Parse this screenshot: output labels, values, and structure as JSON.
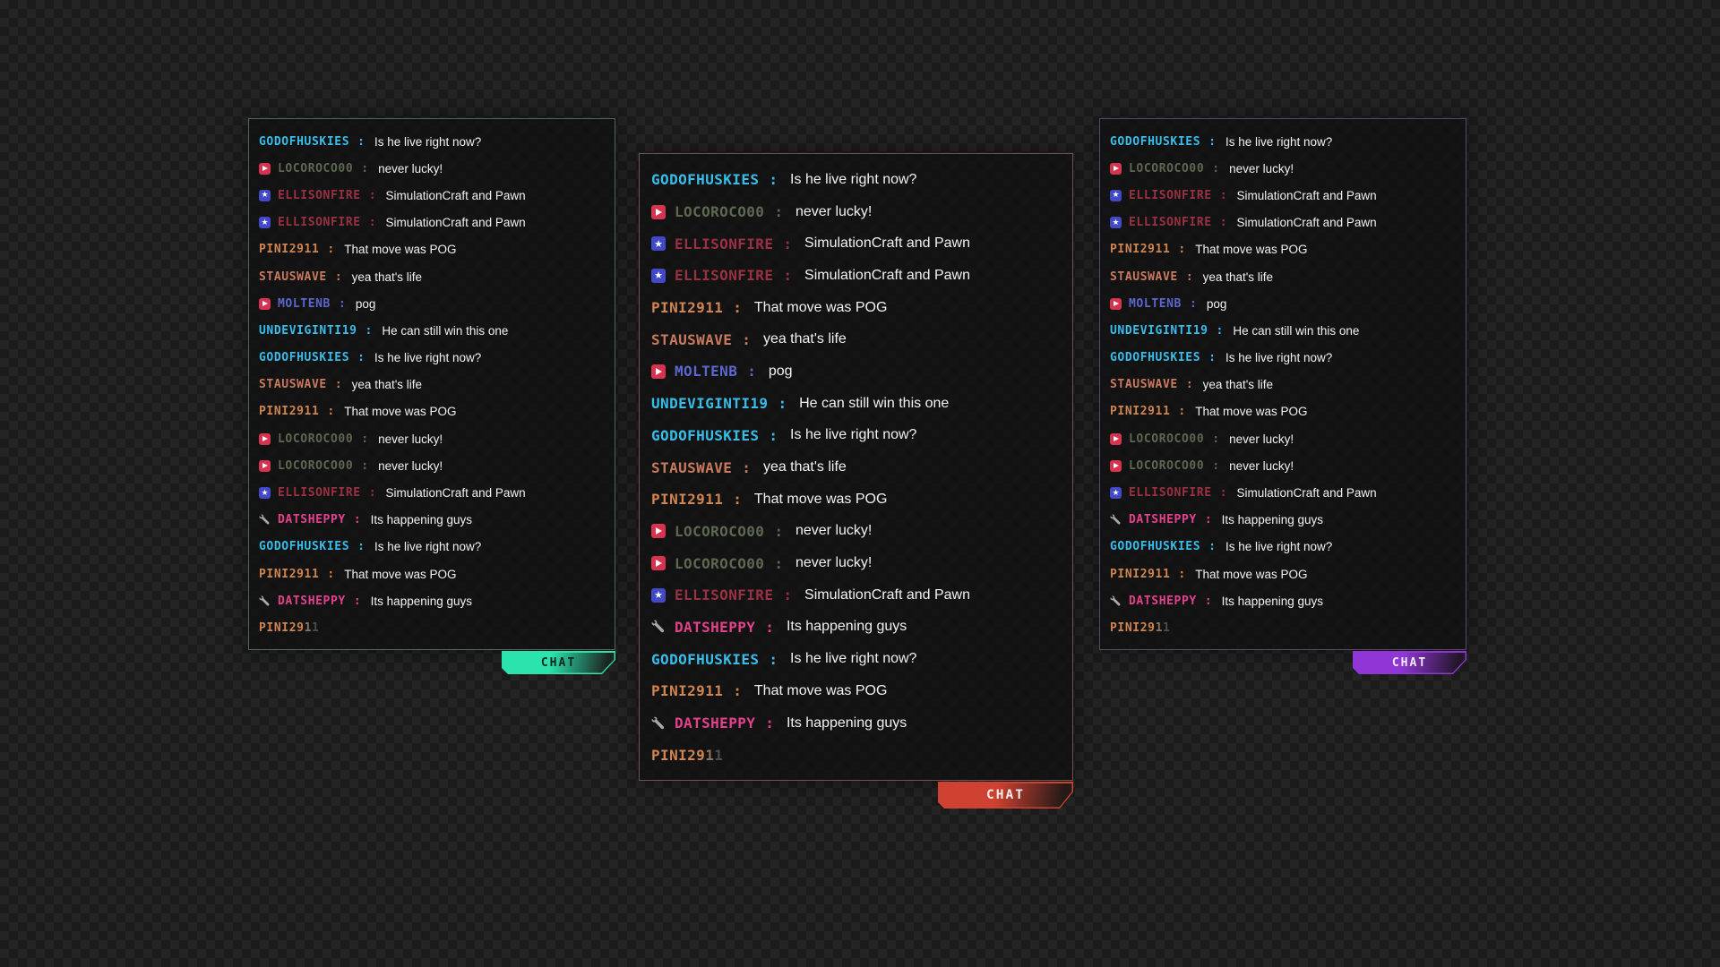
{
  "background": {
    "base_color": "#242424",
    "check_color": "#1b1b1b"
  },
  "message_text_color": "#f2f2f2",
  "users": {
    "GODOFHUSKIES": {
      "color": "#38bdea",
      "badge": null
    },
    "LOCOROCO00": {
      "color": "#5d6751",
      "badge": "video"
    },
    "ELLISONFIRE": {
      "color": "#9a3142",
      "badge": "star"
    },
    "PINI2911": {
      "color": "#d08450",
      "badge": null
    },
    "STAUSWAVE": {
      "color": "#c97a5e",
      "badge": null
    },
    "MOLTENB": {
      "color": "#5b67cf",
      "badge": "video"
    },
    "UNDEVIGINTI19": {
      "color": "#38bdea",
      "badge": null
    },
    "DATSHEPPY": {
      "color": "#e4418d",
      "badge": "wrench"
    }
  },
  "badges": {
    "video": {
      "icon": "video-play-badge",
      "bg": "#d63350",
      "glyph_color": "#ffffff"
    },
    "star": {
      "icon": "star-badge",
      "bg": "#4149c8",
      "glyph": "★",
      "glyph_color": "#ffffff"
    },
    "wrench": {
      "icon": "wrench-badge",
      "bg": "transparent",
      "glyph_color": "#a8a8a8"
    }
  },
  "messages": [
    {
      "user": "GODOFHUSKIES",
      "text": "Is he live right now?"
    },
    {
      "user": "LOCOROCO00",
      "text": "never lucky!"
    },
    {
      "user": "ELLISONFIRE",
      "text": "SimulationCraft and Pawn"
    },
    {
      "user": "ELLISONFIRE",
      "text": "SimulationCraft and Pawn"
    },
    {
      "user": "PINI2911",
      "text": "That move was POG"
    },
    {
      "user": "STAUSWAVE",
      "text": "yea that's life"
    },
    {
      "user": "MOLTENB",
      "text": "pog"
    },
    {
      "user": "UNDEVIGINTI19",
      "text": "He can still win this one"
    },
    {
      "user": "GODOFHUSKIES",
      "text": "Is he live right now?"
    },
    {
      "user": "STAUSWAVE",
      "text": "yea that's life"
    },
    {
      "user": "PINI2911",
      "text": "That move was POG"
    },
    {
      "user": "LOCOROCO00",
      "text": "never lucky!"
    },
    {
      "user": "LOCOROCO00",
      "text": "never lucky!"
    },
    {
      "user": "ELLISONFIRE",
      "text": "SimulationCraft and Pawn"
    },
    {
      "user": "DATSHEPPY",
      "text": "Its happening guys"
    },
    {
      "user": "GODOFHUSKIES",
      "text": "Is he live right now?"
    },
    {
      "user": "PINI2911",
      "text": "That move was POG"
    },
    {
      "user": "DATSHEPPY",
      "text": "Its happening guys"
    },
    {
      "user": "PINI2911",
      "typing": true
    }
  ],
  "typing_row": {
    "user": "PINI2911",
    "solid_part": "PINI29",
    "fade_part_1": "1",
    "fade_part_2": "1",
    "fade_color_1": "#8d7260",
    "fade_color_2": "#4d4d4d"
  },
  "panels": [
    {
      "id": "left",
      "size": "small",
      "border_color": "#51665f",
      "bg_dark_end": "#1c2420",
      "tab": {
        "label": "CHAT",
        "accent": "#2be3ac",
        "text_color": "#0a241b"
      }
    },
    {
      "id": "center",
      "size": "large",
      "border_color": "#6e5450",
      "bg_dark_end": "#241a18",
      "tab": {
        "label": "CHAT",
        "accent": "#cf4130",
        "text_color": "#f7eeec"
      }
    },
    {
      "id": "right",
      "size": "small",
      "border_color": "#564a63",
      "bg_dark_end": "#221629",
      "tab": {
        "label": "CHAT",
        "accent": "#9136d6",
        "text_color": "#f3ebfa"
      }
    }
  ]
}
